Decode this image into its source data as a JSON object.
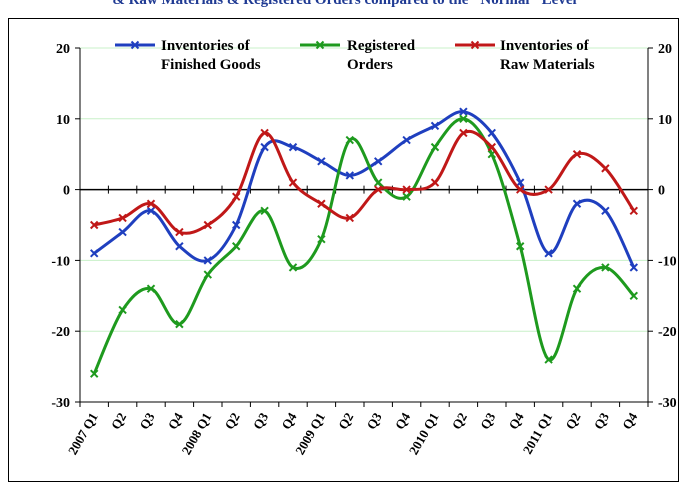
{
  "title": "& Raw Materials & Registered Orders compared to the \"Normal\" Level",
  "chart_data": {
    "type": "line",
    "title": "& Raw Materials & Registered Orders compared to the \"Normal\" Level",
    "categories": [
      "2007 Q1",
      "Q2",
      "Q3",
      "Q4",
      "2008 Q1",
      "Q2",
      "Q3",
      "Q4",
      "2009 Q1",
      "Q2",
      "Q3",
      "Q4",
      "2010 Q1",
      "Q2",
      "Q3",
      "Q4",
      "2011 Q1",
      "Q2",
      "Q3",
      "Q4"
    ],
    "ylim": [
      -30,
      20
    ],
    "yticks": [
      -30,
      -20,
      -10,
      0,
      10,
      20
    ],
    "grid": true,
    "smooth": true,
    "legend_position": "top",
    "series": [
      {
        "name": "Inventories of Finished Goods",
        "color": "#1f3fbf",
        "values": [
          -9,
          -6,
          -3,
          -8,
          -10,
          -5,
          6,
          6,
          4,
          2,
          4,
          7,
          9,
          11,
          8,
          1,
          -9,
          -2,
          -3,
          -11
        ]
      },
      {
        "name": "Registered Orders",
        "color": "#1e9a1e",
        "values": [
          -26,
          -17,
          -14,
          -19,
          -12,
          -8,
          -3,
          -11,
          -7,
          7,
          1,
          -1,
          6,
          10,
          5,
          -8,
          -24,
          -14,
          -11,
          -15
        ]
      },
      {
        "name": "Inventories of Raw Materials",
        "color": "#c01818",
        "values": [
          -5,
          -4,
          -2,
          -6,
          -5,
          -1,
          8,
          1,
          -2,
          -4,
          0,
          0,
          1,
          8,
          6,
          0,
          0,
          5,
          3,
          -3
        ]
      }
    ]
  },
  "legend": {
    "s0": {
      "line1": "Inventories of",
      "line2": "Finished Goods"
    },
    "s1": {
      "line1": "Registered",
      "line2": "Orders"
    },
    "s2": {
      "line1": "Inventories of",
      "line2": "Raw Materials"
    }
  }
}
